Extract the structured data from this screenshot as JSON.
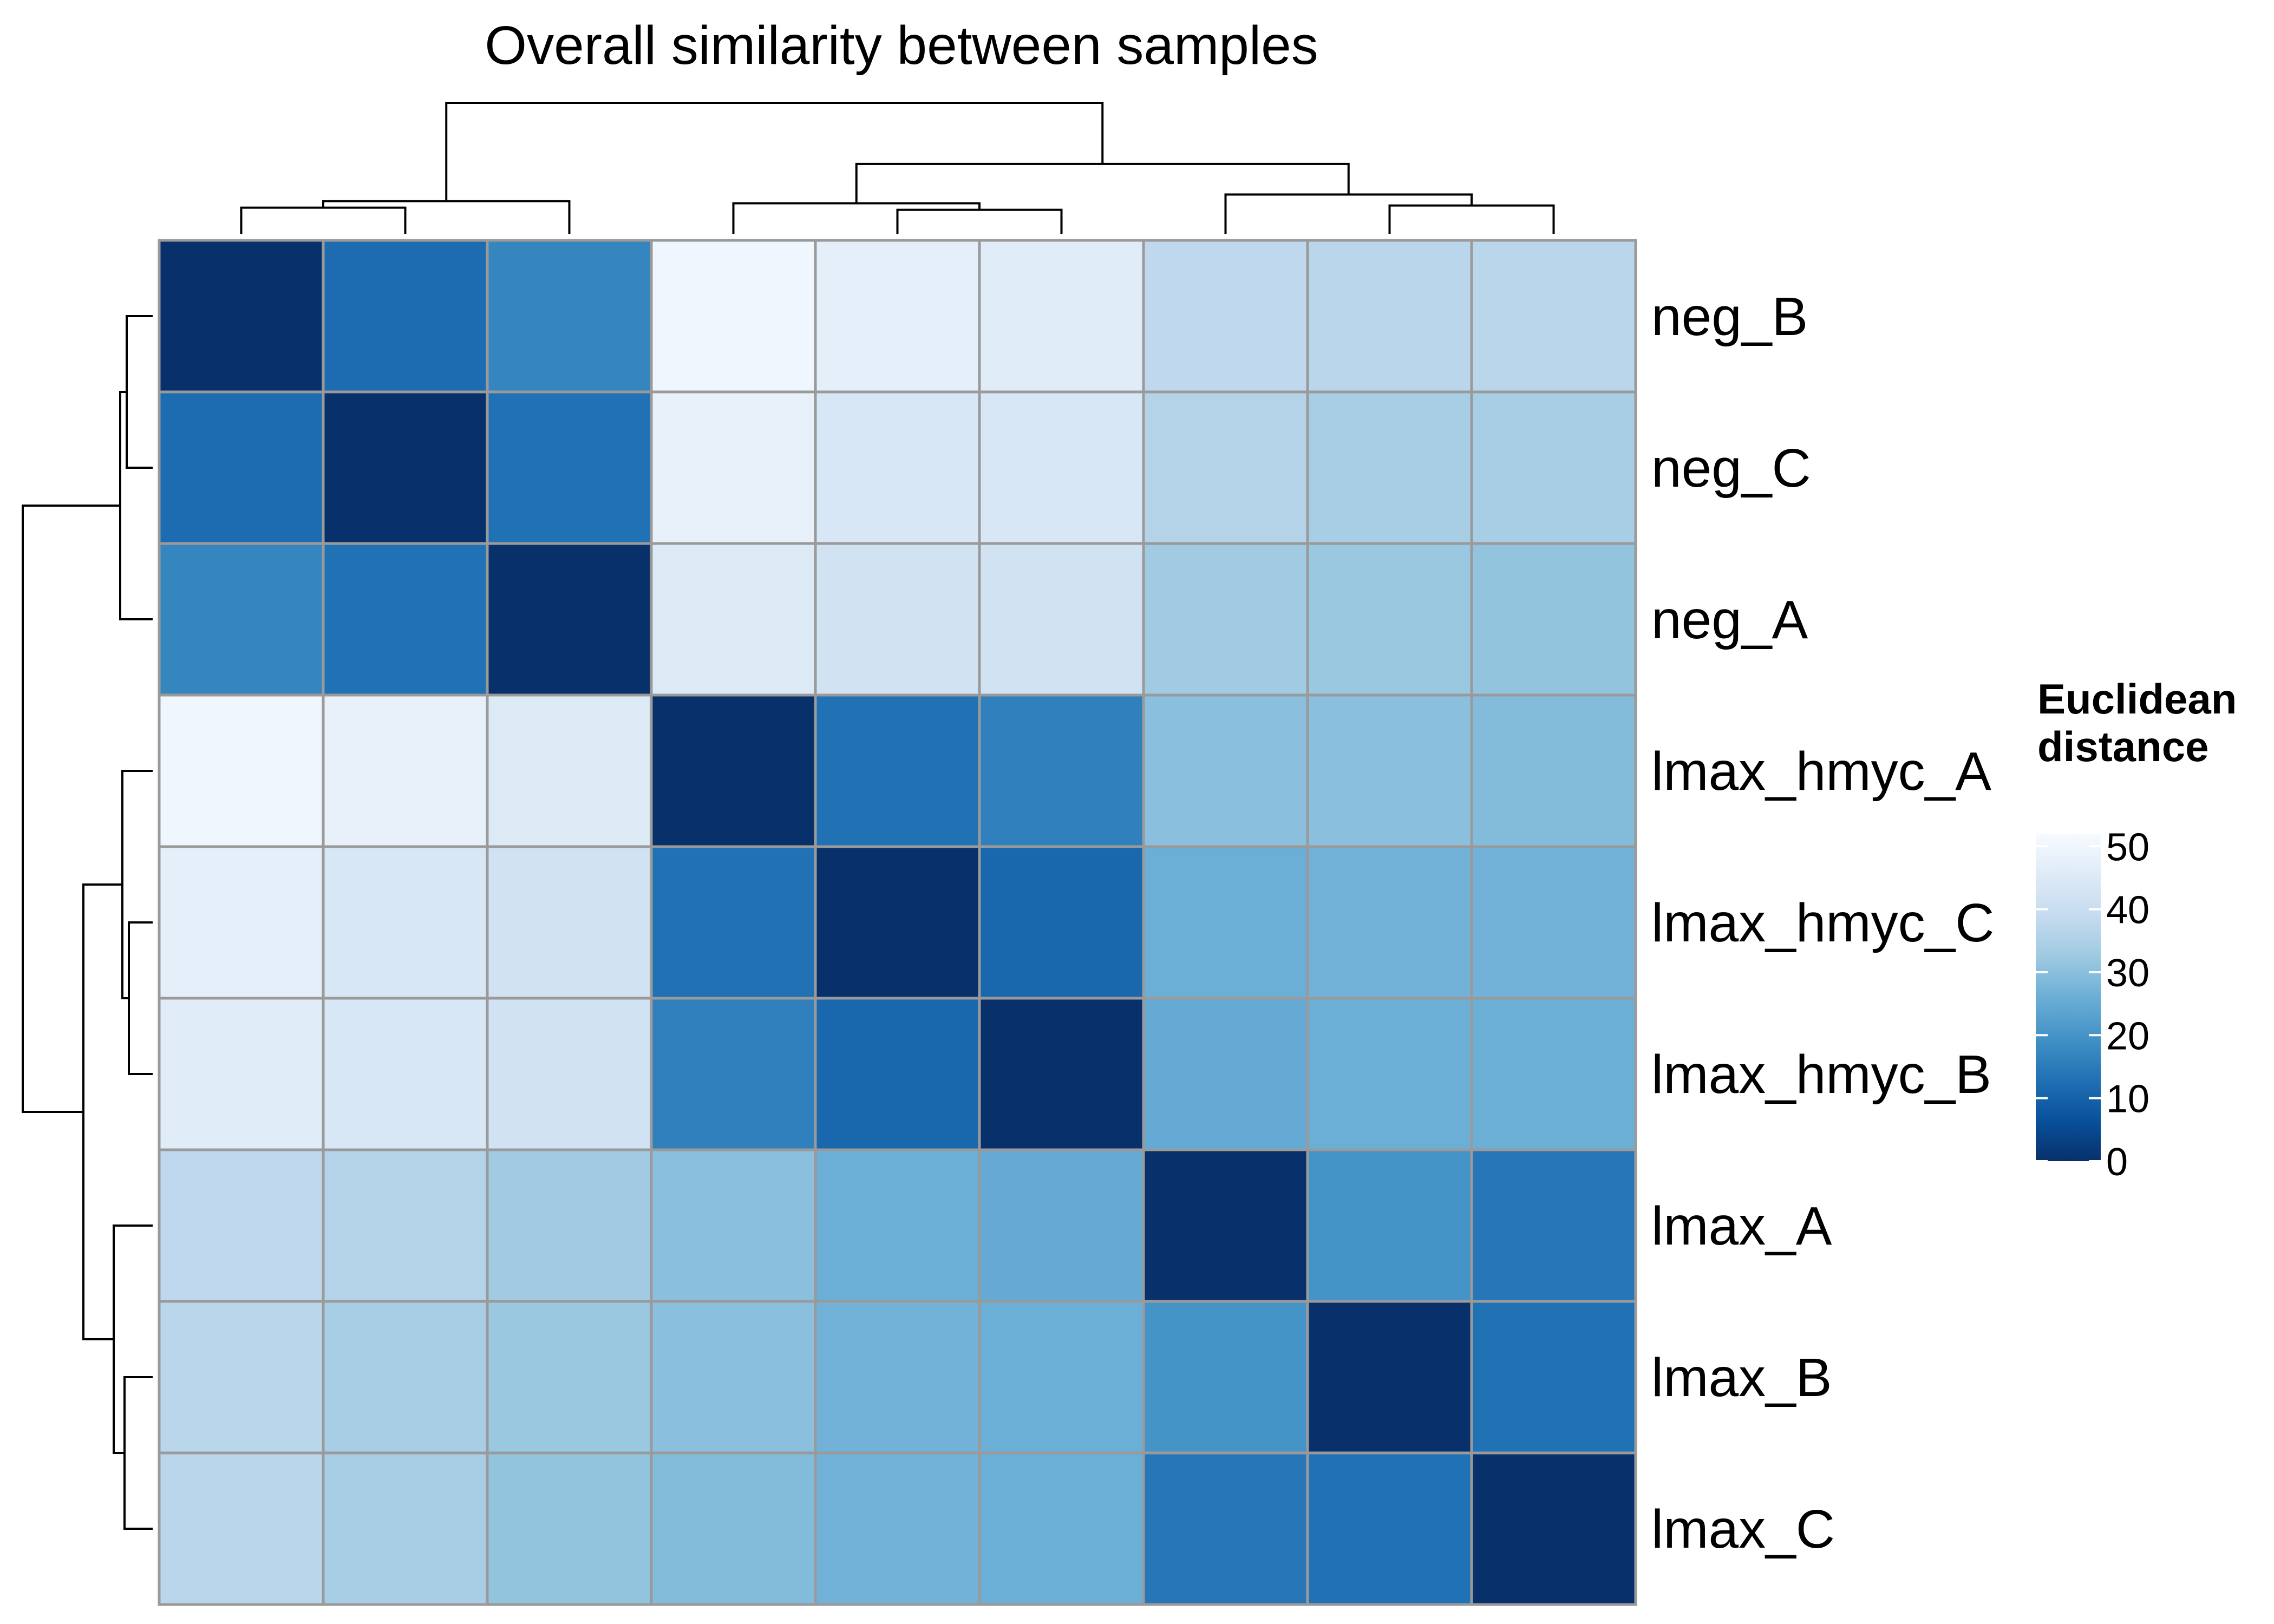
{
  "chart_data": {
    "type": "heatmap",
    "title": "Overall similarity between samples",
    "row_labels": [
      "neg_B",
      "neg_C",
      "neg_A",
      "lmax_hmyc_A",
      "lmax_hmyc_C",
      "lmax_hmyc_B",
      "lmax_A",
      "lmax_B",
      "lmax_C"
    ],
    "col_labels": [],
    "values": [
      [
        0,
        12,
        17,
        50,
        47,
        46,
        38,
        37,
        37
      ],
      [
        12,
        0,
        13,
        48,
        44,
        44,
        36,
        34,
        34
      ],
      [
        17,
        13,
        0,
        45,
        42,
        42,
        33,
        32,
        31
      ],
      [
        50,
        48,
        45,
        0,
        13,
        16,
        30,
        30,
        29
      ],
      [
        47,
        44,
        42,
        13,
        0,
        11,
        26,
        27,
        27
      ],
      [
        46,
        44,
        42,
        16,
        11,
        0,
        25,
        26,
        26
      ],
      [
        38,
        36,
        33,
        30,
        26,
        25,
        0,
        20,
        14
      ],
      [
        37,
        34,
        32,
        30,
        27,
        26,
        20,
        0,
        13
      ],
      [
        37,
        34,
        31,
        29,
        27,
        26,
        14,
        13,
        0
      ]
    ],
    "legend": {
      "title_lines": [
        "Euclidean",
        "distance"
      ],
      "ticks": [
        "0",
        "10",
        "20",
        "30",
        "40",
        "50"
      ],
      "tick_values": [
        0,
        10,
        20,
        30,
        40,
        50
      ],
      "range": [
        0,
        52
      ],
      "placement": "right"
    },
    "colorscale": [
      "#08306b",
      "#08519c",
      "#2171b5",
      "#4292c6",
      "#6baed6",
      "#9ecae1",
      "#c6dbef",
      "#deebf7",
      "#f7fbff"
    ],
    "row_dendrogram": [
      [
        0,
        1,
        12
      ],
      [
        9,
        2,
        15
      ],
      [
        4,
        5,
        11
      ],
      [
        3,
        11,
        14
      ],
      [
        7,
        8,
        13
      ],
      [
        6,
        13,
        18
      ],
      [
        12,
        14,
        32
      ],
      [
        10,
        15,
        60
      ]
    ],
    "col_dendrogram": [
      [
        0,
        1,
        12
      ],
      [
        9,
        2,
        15
      ],
      [
        4,
        5,
        11
      ],
      [
        3,
        11,
        14
      ],
      [
        7,
        8,
        13
      ],
      [
        6,
        13,
        18
      ],
      [
        12,
        14,
        32
      ],
      [
        10,
        15,
        60
      ]
    ]
  }
}
